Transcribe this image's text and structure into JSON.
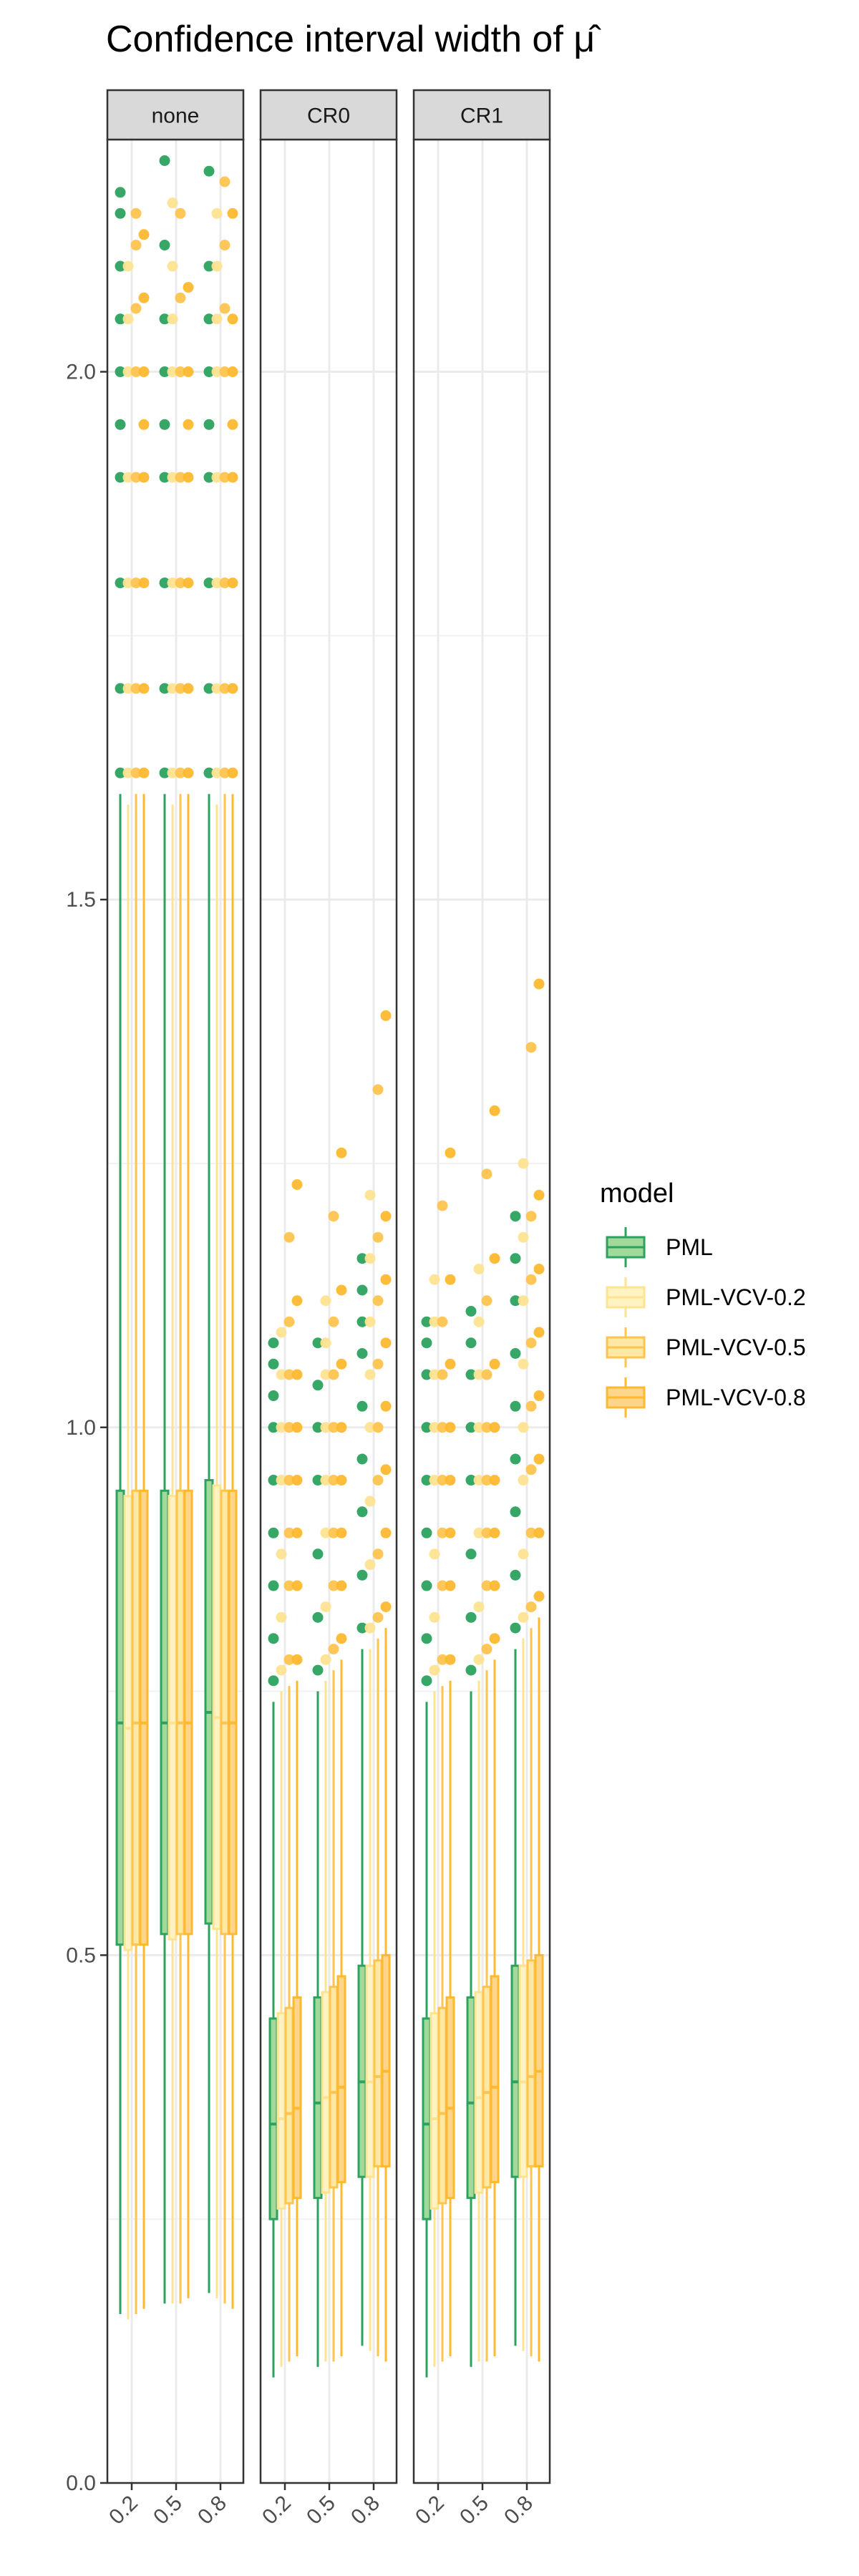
{
  "chart_data": {
    "type": "boxplot",
    "title": "Confidence interval width of μ̂",
    "xlabel": "",
    "ylabel": "",
    "ylim": [
      0.0,
      2.22
    ],
    "y_ticks": [
      0.0,
      0.5,
      1.0,
      1.5,
      2.0
    ],
    "y_tick_labels": [
      "0.0",
      "0.5",
      "1.0",
      "1.5",
      "2.0"
    ],
    "categories": [
      "0.2",
      "0.5",
      "0.8"
    ],
    "grid": true,
    "legend": {
      "title": "model",
      "position": "right",
      "entries": [
        {
          "name": "PML",
          "color": "#2ca25f",
          "fill": "#a1d99b"
        },
        {
          "name": "PML-VCV-0.2",
          "color": "#fee391",
          "fill": "#fff3c4"
        },
        {
          "name": "PML-VCV-0.5",
          "color": "#fec44f",
          "fill": "#fee8a6"
        },
        {
          "name": "PML-VCV-0.8",
          "color": "#fdb92f",
          "fill": "#fed58a"
        }
      ]
    },
    "panels": [
      {
        "label": "none",
        "groups": [
          {
            "x": "0.2",
            "boxes": [
              {
                "series": "PML",
                "min": 0.16,
                "q1": 0.51,
                "median": 0.72,
                "q3": 0.94,
                "max": 1.6,
                "outliers": [
                  1.62,
                  1.7,
                  1.8,
                  1.9,
                  1.95,
                  2.0,
                  2.05,
                  2.1,
                  2.15,
                  2.17
                ]
              },
              {
                "series": "PML-VCV-0.2",
                "min": 0.155,
                "q1": 0.505,
                "median": 0.715,
                "q3": 0.935,
                "max": 1.59,
                "outliers": [
                  1.62,
                  1.7,
                  1.8,
                  1.9,
                  2.0,
                  2.05,
                  2.1
                ]
              },
              {
                "series": "PML-VCV-0.5",
                "min": 0.16,
                "q1": 0.51,
                "median": 0.72,
                "q3": 0.94,
                "max": 1.6,
                "outliers": [
                  1.62,
                  1.7,
                  1.8,
                  1.9,
                  2.0,
                  2.06,
                  2.12,
                  2.15
                ]
              },
              {
                "series": "PML-VCV-0.8",
                "min": 0.165,
                "q1": 0.51,
                "median": 0.72,
                "q3": 0.94,
                "max": 1.6,
                "outliers": [
                  1.62,
                  1.7,
                  1.8,
                  1.9,
                  1.95,
                  2.0,
                  2.07,
                  2.13
                ]
              }
            ]
          },
          {
            "x": "0.5",
            "boxes": [
              {
                "series": "PML",
                "min": 0.17,
                "q1": 0.52,
                "median": 0.72,
                "q3": 0.94,
                "max": 1.6,
                "outliers": [
                  1.62,
                  1.7,
                  1.8,
                  1.9,
                  1.95,
                  2.0,
                  2.05,
                  2.12,
                  2.2
                ]
              },
              {
                "series": "PML-VCV-0.2",
                "min": 0.17,
                "q1": 0.515,
                "median": 0.72,
                "q3": 0.935,
                "max": 1.59,
                "outliers": [
                  1.62,
                  1.7,
                  1.8,
                  1.9,
                  2.0,
                  2.05,
                  2.1,
                  2.16
                ]
              },
              {
                "series": "PML-VCV-0.5",
                "min": 0.17,
                "q1": 0.52,
                "median": 0.72,
                "q3": 0.94,
                "max": 1.6,
                "outliers": [
                  1.62,
                  1.7,
                  1.8,
                  1.9,
                  2.0,
                  2.07,
                  2.15,
                  2.26
                ]
              },
              {
                "series": "PML-VCV-0.8",
                "min": 0.175,
                "q1": 0.52,
                "median": 0.72,
                "q3": 0.94,
                "max": 1.6,
                "outliers": [
                  1.62,
                  1.7,
                  1.8,
                  1.9,
                  1.95,
                  2.0,
                  2.08,
                  2.26
                ]
              }
            ]
          },
          {
            "x": "0.8",
            "boxes": [
              {
                "series": "PML",
                "min": 0.18,
                "q1": 0.53,
                "median": 0.73,
                "q3": 0.95,
                "max": 1.6,
                "outliers": [
                  1.62,
                  1.7,
                  1.8,
                  1.9,
                  1.95,
                  2.0,
                  2.05,
                  2.1,
                  2.19
                ]
              },
              {
                "series": "PML-VCV-0.2",
                "min": 0.175,
                "q1": 0.525,
                "median": 0.725,
                "q3": 0.945,
                "max": 1.59,
                "outliers": [
                  1.62,
                  1.7,
                  1.8,
                  1.9,
                  2.0,
                  2.05,
                  2.1,
                  2.15
                ]
              },
              {
                "series": "PML-VCV-0.5",
                "min": 0.17,
                "q1": 0.52,
                "median": 0.72,
                "q3": 0.94,
                "max": 1.6,
                "outliers": [
                  1.62,
                  1.7,
                  1.8,
                  1.9,
                  2.0,
                  2.06,
                  2.12,
                  2.18
                ]
              },
              {
                "series": "PML-VCV-0.8",
                "min": 0.165,
                "q1": 0.52,
                "median": 0.72,
                "q3": 0.94,
                "max": 1.6,
                "outliers": [
                  1.62,
                  1.7,
                  1.8,
                  1.9,
                  1.95,
                  2.0,
                  2.05,
                  2.15
                ]
              }
            ]
          }
        ]
      },
      {
        "label": "CR0",
        "groups": [
          {
            "x": "0.2",
            "boxes": [
              {
                "series": "PML",
                "min": 0.1,
                "q1": 0.25,
                "median": 0.34,
                "q3": 0.44,
                "max": 0.74,
                "outliers": [
                  0.76,
                  0.8,
                  0.85,
                  0.9,
                  0.95,
                  1.0,
                  1.03,
                  1.06,
                  1.08
                ]
              },
              {
                "series": "PML-VCV-0.2",
                "min": 0.11,
                "q1": 0.26,
                "median": 0.345,
                "q3": 0.445,
                "max": 0.75,
                "outliers": [
                  0.77,
                  0.82,
                  0.88,
                  0.95,
                  1.0,
                  1.05,
                  1.09
                ]
              },
              {
                "series": "PML-VCV-0.5",
                "min": 0.115,
                "q1": 0.265,
                "median": 0.35,
                "q3": 0.45,
                "max": 0.755,
                "outliers": [
                  0.78,
                  0.85,
                  0.9,
                  0.95,
                  1.0,
                  1.05,
                  1.1,
                  1.18
                ]
              },
              {
                "series": "PML-VCV-0.8",
                "min": 0.12,
                "q1": 0.27,
                "median": 0.355,
                "q3": 0.46,
                "max": 0.76,
                "outliers": [
                  0.78,
                  0.85,
                  0.9,
                  0.95,
                  1.0,
                  1.05,
                  1.12,
                  1.23
                ]
              }
            ]
          },
          {
            "x": "0.5",
            "boxes": [
              {
                "series": "PML",
                "min": 0.11,
                "q1": 0.27,
                "median": 0.36,
                "q3": 0.46,
                "max": 0.75,
                "outliers": [
                  0.77,
                  0.82,
                  0.88,
                  0.95,
                  1.0,
                  1.04,
                  1.08
                ]
              },
              {
                "series": "PML-VCV-0.2",
                "min": 0.115,
                "q1": 0.275,
                "median": 0.365,
                "q3": 0.465,
                "max": 0.76,
                "outliers": [
                  0.78,
                  0.83,
                  0.9,
                  0.95,
                  1.0,
                  1.05,
                  1.08,
                  1.12
                ]
              },
              {
                "series": "PML-VCV-0.5",
                "min": 0.115,
                "q1": 0.28,
                "median": 0.37,
                "q3": 0.47,
                "max": 0.77,
                "outliers": [
                  0.79,
                  0.85,
                  0.9,
                  0.95,
                  1.0,
                  1.05,
                  1.1,
                  1.2
                ]
              },
              {
                "series": "PML-VCV-0.8",
                "min": 0.12,
                "q1": 0.285,
                "median": 0.375,
                "q3": 0.48,
                "max": 0.78,
                "outliers": [
                  0.8,
                  0.85,
                  0.9,
                  0.95,
                  1.0,
                  1.06,
                  1.13,
                  1.26
                ]
              }
            ]
          },
          {
            "x": "0.8",
            "boxes": [
              {
                "series": "PML",
                "min": 0.13,
                "q1": 0.29,
                "median": 0.38,
                "q3": 0.49,
                "max": 0.79,
                "outliers": [
                  0.81,
                  0.86,
                  0.92,
                  0.97,
                  1.02,
                  1.07,
                  1.1,
                  1.13,
                  1.16
                ]
              },
              {
                "series": "PML-VCV-0.2",
                "min": 0.125,
                "q1": 0.29,
                "median": 0.38,
                "q3": 0.49,
                "max": 0.79,
                "outliers": [
                  0.81,
                  0.87,
                  0.93,
                  1.0,
                  1.05,
                  1.1,
                  1.16,
                  1.22
                ]
              },
              {
                "series": "PML-VCV-0.5",
                "min": 0.12,
                "q1": 0.3,
                "median": 0.385,
                "q3": 0.495,
                "max": 0.8,
                "outliers": [
                  0.82,
                  0.88,
                  0.95,
                  1.0,
                  1.06,
                  1.12,
                  1.18,
                  1.32
                ]
              },
              {
                "series": "PML-VCV-0.8",
                "min": 0.115,
                "q1": 0.3,
                "median": 0.39,
                "q3": 0.5,
                "max": 0.81,
                "outliers": [
                  0.83,
                  0.9,
                  0.96,
                  1.02,
                  1.08,
                  1.14,
                  1.2,
                  1.39
                ]
              }
            ]
          }
        ]
      },
      {
        "label": "CR1",
        "groups": [
          {
            "x": "0.2",
            "boxes": [
              {
                "series": "PML",
                "min": 0.1,
                "q1": 0.25,
                "median": 0.34,
                "q3": 0.44,
                "max": 0.74,
                "outliers": [
                  0.76,
                  0.8,
                  0.85,
                  0.9,
                  0.95,
                  1.0,
                  1.05,
                  1.08,
                  1.1
                ]
              },
              {
                "series": "PML-VCV-0.2",
                "min": 0.11,
                "q1": 0.26,
                "median": 0.345,
                "q3": 0.445,
                "max": 0.75,
                "outliers": [
                  0.77,
                  0.82,
                  0.88,
                  0.95,
                  1.0,
                  1.05,
                  1.1,
                  1.14
                ]
              },
              {
                "series": "PML-VCV-0.5",
                "min": 0.115,
                "q1": 0.265,
                "median": 0.35,
                "q3": 0.45,
                "max": 0.755,
                "outliers": [
                  0.78,
                  0.85,
                  0.9,
                  0.95,
                  1.0,
                  1.05,
                  1.1,
                  1.21
                ]
              },
              {
                "series": "PML-VCV-0.8",
                "min": 0.12,
                "q1": 0.27,
                "median": 0.355,
                "q3": 0.46,
                "max": 0.76,
                "outliers": [
                  0.78,
                  0.85,
                  0.9,
                  0.95,
                  1.0,
                  1.06,
                  1.14,
                  1.26
                ]
              }
            ]
          },
          {
            "x": "0.5",
            "boxes": [
              {
                "series": "PML",
                "min": 0.11,
                "q1": 0.27,
                "median": 0.36,
                "q3": 0.46,
                "max": 0.75,
                "outliers": [
                  0.77,
                  0.82,
                  0.88,
                  0.95,
                  1.0,
                  1.05,
                  1.08,
                  1.11
                ]
              },
              {
                "series": "PML-VCV-0.2",
                "min": 0.115,
                "q1": 0.275,
                "median": 0.365,
                "q3": 0.465,
                "max": 0.76,
                "outliers": [
                  0.78,
                  0.83,
                  0.9,
                  0.95,
                  1.0,
                  1.05,
                  1.1,
                  1.15
                ]
              },
              {
                "series": "PML-VCV-0.5",
                "min": 0.115,
                "q1": 0.28,
                "median": 0.37,
                "q3": 0.47,
                "max": 0.77,
                "outliers": [
                  0.79,
                  0.85,
                  0.9,
                  0.95,
                  1.0,
                  1.05,
                  1.12,
                  1.24
                ]
              },
              {
                "series": "PML-VCV-0.8",
                "min": 0.12,
                "q1": 0.285,
                "median": 0.375,
                "q3": 0.48,
                "max": 0.78,
                "outliers": [
                  0.8,
                  0.85,
                  0.9,
                  0.95,
                  1.0,
                  1.06,
                  1.16,
                  1.3
                ]
              }
            ]
          },
          {
            "x": "0.8",
            "boxes": [
              {
                "series": "PML",
                "min": 0.13,
                "q1": 0.29,
                "median": 0.38,
                "q3": 0.49,
                "max": 0.79,
                "outliers": [
                  0.81,
                  0.86,
                  0.92,
                  0.97,
                  1.02,
                  1.07,
                  1.12,
                  1.16,
                  1.2
                ]
              },
              {
                "series": "PML-VCV-0.2",
                "min": 0.125,
                "q1": 0.29,
                "median": 0.38,
                "q3": 0.49,
                "max": 0.8,
                "outliers": [
                  0.82,
                  0.88,
                  0.95,
                  1.0,
                  1.06,
                  1.12,
                  1.18,
                  1.25
                ]
              },
              {
                "series": "PML-VCV-0.5",
                "min": 0.12,
                "q1": 0.3,
                "median": 0.385,
                "q3": 0.495,
                "max": 0.81,
                "outliers": [
                  0.83,
                  0.9,
                  0.96,
                  1.02,
                  1.08,
                  1.14,
                  1.2,
                  1.36
                ]
              },
              {
                "series": "PML-VCV-0.8",
                "min": 0.115,
                "q1": 0.3,
                "median": 0.39,
                "q3": 0.5,
                "max": 0.82,
                "outliers": [
                  0.84,
                  0.9,
                  0.97,
                  1.03,
                  1.09,
                  1.15,
                  1.22,
                  1.42
                ]
              }
            ]
          }
        ]
      }
    ]
  }
}
